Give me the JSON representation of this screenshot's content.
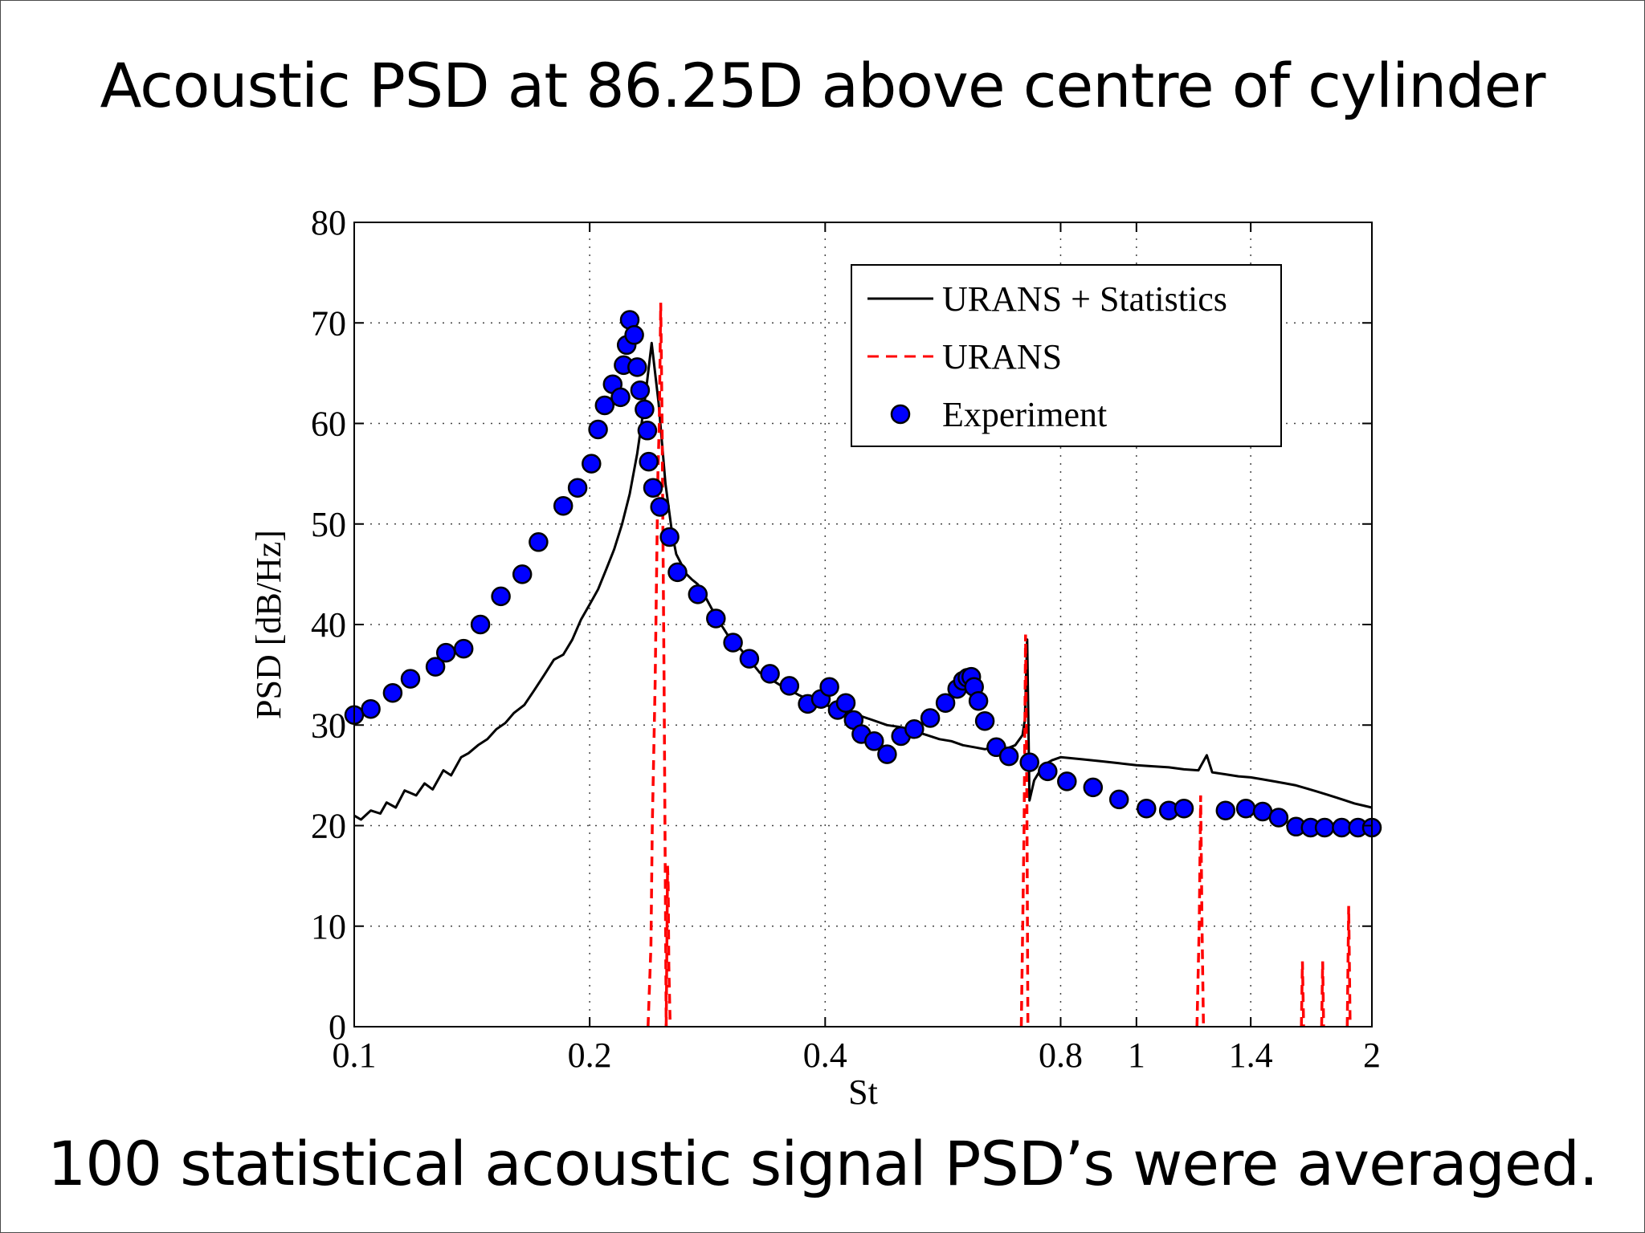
{
  "slide": {
    "title": "Acoustic PSD at 86.25D above centre of cylinder",
    "caption": "100 statistical acoustic signal PSD’s were averaged."
  },
  "chart_data": {
    "type": "line",
    "title": "",
    "xlabel": "St",
    "ylabel": "PSD [dB/Hz]",
    "xscale": "log",
    "xlim": [
      0.1,
      2
    ],
    "ylim": [
      0,
      80
    ],
    "xticks": [
      0.1,
      0.2,
      0.4,
      0.8,
      1,
      1.4,
      2
    ],
    "xtick_labels": [
      "0.1",
      "0.2",
      "0.4",
      "0.8",
      "1",
      "1.4",
      "2"
    ],
    "yticks": [
      0,
      10,
      20,
      30,
      40,
      50,
      60,
      70,
      80
    ],
    "ytick_labels": [
      "0",
      "10",
      "20",
      "30",
      "40",
      "50",
      "60",
      "70",
      "80"
    ],
    "grid": true,
    "legend_position": "top-right",
    "series": [
      {
        "name": "URANS + Statistics",
        "style": "solid",
        "color": "#000000",
        "x": [
          0.1,
          0.102,
          0.105,
          0.108,
          0.11,
          0.113,
          0.116,
          0.12,
          0.123,
          0.126,
          0.13,
          0.133,
          0.137,
          0.14,
          0.144,
          0.148,
          0.152,
          0.156,
          0.16,
          0.165,
          0.17,
          0.175,
          0.18,
          0.185,
          0.19,
          0.195,
          0.2,
          0.205,
          0.21,
          0.215,
          0.22,
          0.225,
          0.23,
          0.235,
          0.24,
          0.245,
          0.25,
          0.255,
          0.258,
          0.262,
          0.266,
          0.27,
          0.275,
          0.28,
          0.29,
          0.3,
          0.31,
          0.32,
          0.33,
          0.34,
          0.35,
          0.36,
          0.37,
          0.38,
          0.39,
          0.4,
          0.42,
          0.44,
          0.46,
          0.48,
          0.5,
          0.52,
          0.54,
          0.56,
          0.58,
          0.6,
          0.62,
          0.64,
          0.66,
          0.68,
          0.7,
          0.715,
          0.72,
          0.725,
          0.73,
          0.74,
          0.76,
          0.78,
          0.8,
          0.85,
          0.9,
          0.95,
          1.0,
          1.05,
          1.1,
          1.15,
          1.2,
          1.23,
          1.25,
          1.3,
          1.35,
          1.4,
          1.45,
          1.5,
          1.55,
          1.6,
          1.65,
          1.7,
          1.75,
          1.8,
          1.85,
          1.9,
          1.95,
          2.0
        ],
        "y": [
          21,
          20.6,
          21.5,
          21.2,
          22.3,
          21.8,
          23.5,
          23.0,
          24.2,
          23.6,
          25.5,
          25.0,
          26.8,
          27.2,
          28.0,
          28.6,
          29.6,
          30.2,
          31.2,
          32.0,
          33.5,
          35.0,
          36.5,
          37.0,
          38.5,
          40.5,
          42.0,
          43.5,
          45.5,
          47.5,
          50.0,
          53.0,
          57.0,
          62.0,
          68.0,
          62.0,
          54.0,
          49.0,
          47.0,
          46.0,
          45.0,
          44.5,
          44.0,
          43.0,
          40.8,
          39.0,
          37.8,
          36.5,
          35.2,
          34.6,
          34.0,
          33.5,
          33.0,
          32.6,
          32.2,
          32.0,
          31.5,
          31.0,
          30.5,
          30.0,
          29.8,
          29.4,
          29.0,
          28.6,
          28.4,
          28.0,
          27.8,
          27.6,
          27.8,
          27.6,
          28.0,
          29.0,
          30.5,
          38.5,
          22.5,
          24.5,
          26.0,
          26.5,
          26.8,
          26.6,
          26.4,
          26.2,
          26.0,
          25.9,
          25.8,
          25.6,
          25.5,
          27.0,
          25.3,
          25.1,
          24.9,
          24.8,
          24.6,
          24.4,
          24.2,
          24.0,
          23.7,
          23.4,
          23.1,
          22.8,
          22.5,
          22.2,
          22.0,
          21.8
        ]
      },
      {
        "name": "URANS",
        "style": "dashed",
        "color": "#ff0000",
        "segments": [
          {
            "x": [
              0.2375,
              0.2395,
              0.2405,
              0.2425,
              0.2445,
              0.2455,
              0.2465,
              0.2475,
              0.249,
              0.2505
            ],
            "y": [
              0,
              8,
              20,
              34,
              55,
              60,
              72,
              60,
              34,
              0
            ]
          },
          {
            "x": [
              0.2505,
              0.2515,
              0.252,
              0.2525,
              0.2535
            ],
            "y": [
              0,
              16,
              14,
              6,
              0
            ]
          },
          {
            "x": [
              0.7125,
              0.7185,
              0.7215,
              0.7245,
              0.7265
            ],
            "y": [
              0,
              20,
              39,
              22,
              0
            ]
          },
          {
            "x": [
              1.195,
              1.203,
              1.208,
              1.213,
              1.218
            ],
            "y": [
              0,
              10,
              23,
              10,
              0
            ]
          },
          {
            "x": [
              1.625,
              1.63,
              1.636
            ],
            "y": [
              0,
              6.5,
              0
            ]
          },
          {
            "x": [
              1.725,
              1.73,
              1.735
            ],
            "y": [
              0,
              6.5,
              0
            ]
          },
          {
            "x": [
              1.86,
              1.868,
              1.876
            ],
            "y": [
              0,
              12,
              0
            ]
          }
        ]
      },
      {
        "name": "Experiment",
        "style": "markers",
        "color": "#0000ff",
        "x": [
          0.1,
          0.105,
          0.112,
          0.118,
          0.127,
          0.131,
          0.138,
          0.145,
          0.154,
          0.164,
          0.172,
          0.185,
          0.193,
          0.201,
          0.205,
          0.209,
          0.214,
          0.219,
          0.221,
          0.223,
          0.225,
          0.228,
          0.23,
          0.232,
          0.235,
          0.237,
          0.238,
          0.241,
          0.246,
          0.253,
          0.259,
          0.275,
          0.29,
          0.305,
          0.32,
          0.34,
          0.36,
          0.38,
          0.395,
          0.405,
          0.415,
          0.425,
          0.435,
          0.445,
          0.462,
          0.48,
          0.5,
          0.52,
          0.545,
          0.57,
          0.59,
          0.6,
          0.608,
          0.615,
          0.62,
          0.628,
          0.64,
          0.662,
          0.687,
          0.73,
          0.77,
          0.815,
          0.88,
          0.95,
          1.03,
          1.1,
          1.15,
          1.3,
          1.38,
          1.45,
          1.52,
          1.6,
          1.67,
          1.74,
          1.83,
          1.92,
          2.0
        ],
        "y": [
          31.0,
          31.6,
          33.2,
          34.6,
          35.8,
          37.2,
          37.6,
          40.0,
          42.8,
          45.0,
          48.2,
          51.8,
          53.6,
          56.0,
          59.4,
          61.8,
          63.9,
          62.6,
          65.8,
          67.8,
          70.3,
          68.8,
          65.6,
          63.3,
          61.4,
          59.3,
          56.2,
          53.6,
          51.7,
          48.7,
          45.2,
          43.0,
          40.6,
          38.2,
          36.6,
          35.1,
          33.9,
          32.1,
          32.6,
          33.8,
          31.5,
          32.2,
          30.5,
          29.1,
          28.4,
          27.1,
          28.9,
          29.6,
          30.7,
          32.2,
          33.6,
          34.4,
          34.7,
          34.8,
          33.8,
          32.4,
          30.4,
          27.8,
          26.9,
          26.3,
          25.4,
          24.4,
          23.8,
          22.6,
          21.7,
          21.5,
          21.7,
          21.5,
          21.7,
          21.4,
          20.8,
          19.9,
          19.8,
          19.8,
          19.8,
          19.8,
          19.8
        ]
      }
    ]
  }
}
